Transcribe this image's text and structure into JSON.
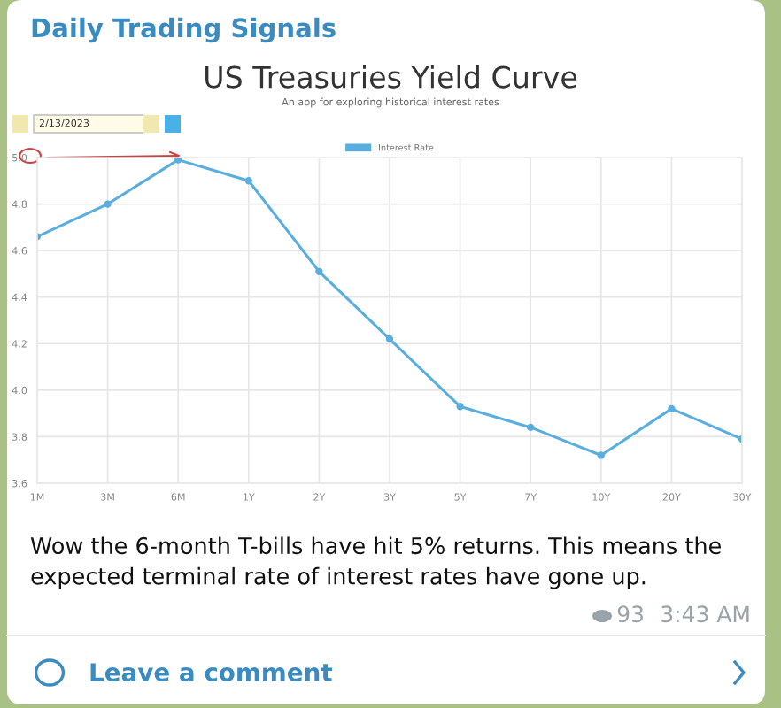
{
  "chart_data": {
    "type": "line",
    "title": "US Treasuries Yield Curve",
    "subtitle": "An app for exploring historical interest rates",
    "categories": [
      "1M",
      "3M",
      "6M",
      "1Y",
      "2Y",
      "3Y",
      "5Y",
      "7Y",
      "10Y",
      "20Y",
      "30Y"
    ],
    "series": [
      {
        "name": "Interest Rate",
        "color": "#5aaedf",
        "values": [
          4.66,
          4.8,
          4.99,
          4.9,
          4.51,
          4.22,
          3.93,
          3.84,
          3.72,
          3.92,
          3.79
        ]
      }
    ],
    "ylim": [
      3.6,
      5.0
    ],
    "yticks": [
      {
        "value": 3.6,
        "label": "3.6"
      },
      {
        "value": 3.8,
        "label": "3.8"
      },
      {
        "value": 4.0,
        "label": "4.0"
      },
      {
        "value": 4.2,
        "label": "4.2"
      },
      {
        "value": 4.4,
        "label": "4.4"
      },
      {
        "value": 4.6,
        "label": "4.6"
      },
      {
        "value": 4.8,
        "label": "4.8"
      },
      {
        "value": 5.0,
        "label": "5.0"
      }
    ],
    "grid": true,
    "legend": "top",
    "marker": "circle",
    "line_style": "solid",
    "annotations": [
      "Daily Trading Signals",
      "2/13/2023",
      "Wow the 6-month T-bills have hit 5% returns. This means the\nexpected terminal rate of interest rates have gone up.",
      "93",
      "3:43 AM",
      "Leave a comment"
    ]
  }
}
